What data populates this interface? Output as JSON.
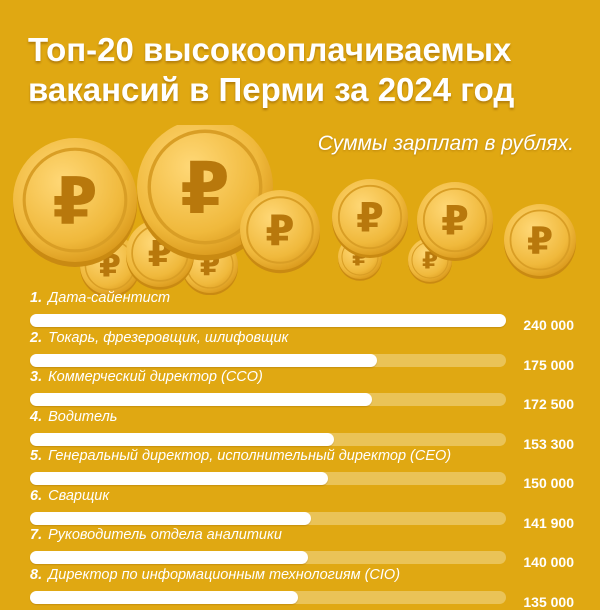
{
  "title_line1": "Топ-20 высокооплачиваемых",
  "title_line2": "вакансий в Перми за 2024 год",
  "subtitle": "Суммы зарплат в рублях.",
  "coin_symbol": "₽",
  "colors": {
    "background": "#e0a812",
    "bar": "#ffffff",
    "track": "#eac357",
    "coin": "#f3c14a"
  },
  "chart_data": {
    "type": "bar",
    "orientation": "horizontal",
    "title": "Топ-20 высокооплачиваемых вакансий в Перми за 2024 год",
    "subtitle": "Суммы зарплат в рублях.",
    "categories": [
      "Дата-сайентист",
      "Токарь, фрезеровщик, шлифовщик",
      "Коммерческий директор (CCO)",
      "Водитель",
      "Генеральный директор, исполнительный директор (CEO)",
      "Сварщик",
      "Руководитель отдела аналитики",
      "Директор по информационным технологиям (CIO)"
    ],
    "numbers": [
      "1.",
      "2.",
      "3.",
      "4.",
      "5.",
      "6.",
      "7.",
      "8."
    ],
    "values": [
      240000,
      175000,
      172500,
      153300,
      150000,
      141900,
      140000,
      135000
    ],
    "value_labels": [
      "240 000",
      "175 000",
      "172 500",
      "153 300",
      "150 000",
      "141 900",
      "140 000",
      "135 000"
    ],
    "xlim": [
      0,
      240000
    ]
  }
}
